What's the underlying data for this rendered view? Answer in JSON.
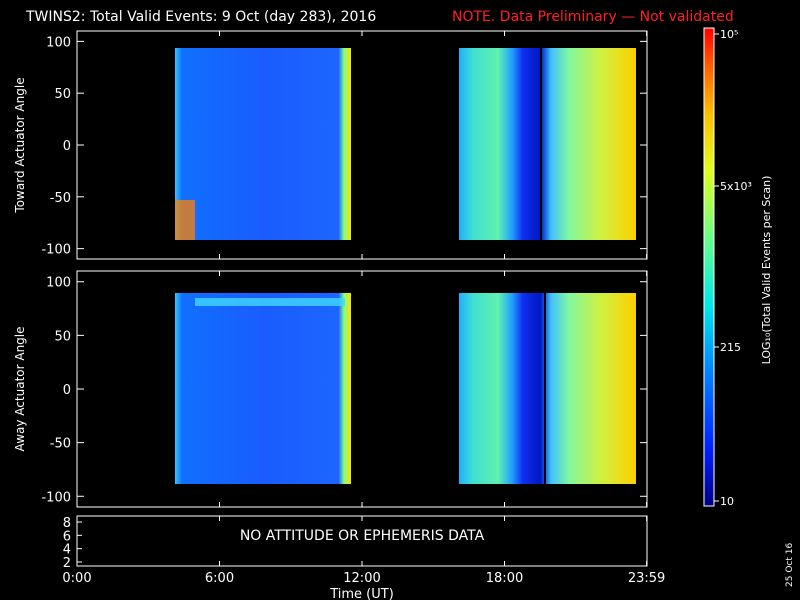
{
  "header": {
    "title": "TWINS2: Total Valid Events:  9 Oct (day 283), 2016",
    "note": "NOTE. Data Preliminary — Not validated",
    "note_color": "#ff2020"
  },
  "chart_data": [
    {
      "type": "heatmap",
      "panel": "toward",
      "ylabel": "Toward Actuator Angle",
      "ylim": [
        -110,
        110
      ],
      "y_ticks": [
        "100",
        "50",
        "0",
        "-50",
        "-100"
      ],
      "data_blocks": [
        {
          "x_start": "04:00",
          "x_end": "11:30",
          "y_range": [
            -88,
            90
          ],
          "dominant_level": "low (blue)"
        },
        {
          "x_start": "16:20",
          "x_end": "23:59",
          "y_range": [
            -88,
            90
          ],
          "dominant_level": "mid-high (cyan-yellow)"
        }
      ]
    },
    {
      "type": "heatmap",
      "panel": "away",
      "ylabel": "Away Actuator Angle",
      "ylim": [
        -110,
        110
      ],
      "y_ticks": [
        "100",
        "50",
        "0",
        "-50",
        "-100"
      ],
      "data_blocks": [
        {
          "x_start": "04:00",
          "x_end": "11:30",
          "y_range": [
            -88,
            90
          ],
          "dominant_level": "low (blue)"
        },
        {
          "x_start": "16:20",
          "x_end": "23:59",
          "y_range": [
            -88,
            90
          ],
          "dominant_level": "mid-high (cyan-yellow)"
        }
      ]
    },
    {
      "type": "line",
      "panel": "ephemeris",
      "y_ticks": [
        "8",
        "6",
        "4",
        "2"
      ],
      "message": "NO ATTITUDE OR EPHEMERIS DATA"
    }
  ],
  "x_axis": {
    "label": "Time (UT)",
    "ticks": [
      "0:00",
      "6:00",
      "12:00",
      "18:00",
      "23:59"
    ]
  },
  "colorbar": {
    "ticks": [
      "10",
      "215",
      "5x10³",
      "10⁵"
    ],
    "label": "LOG₁₀(Total Valid Events per Scan)"
  },
  "footer": {
    "date": "25 Oct 16"
  }
}
